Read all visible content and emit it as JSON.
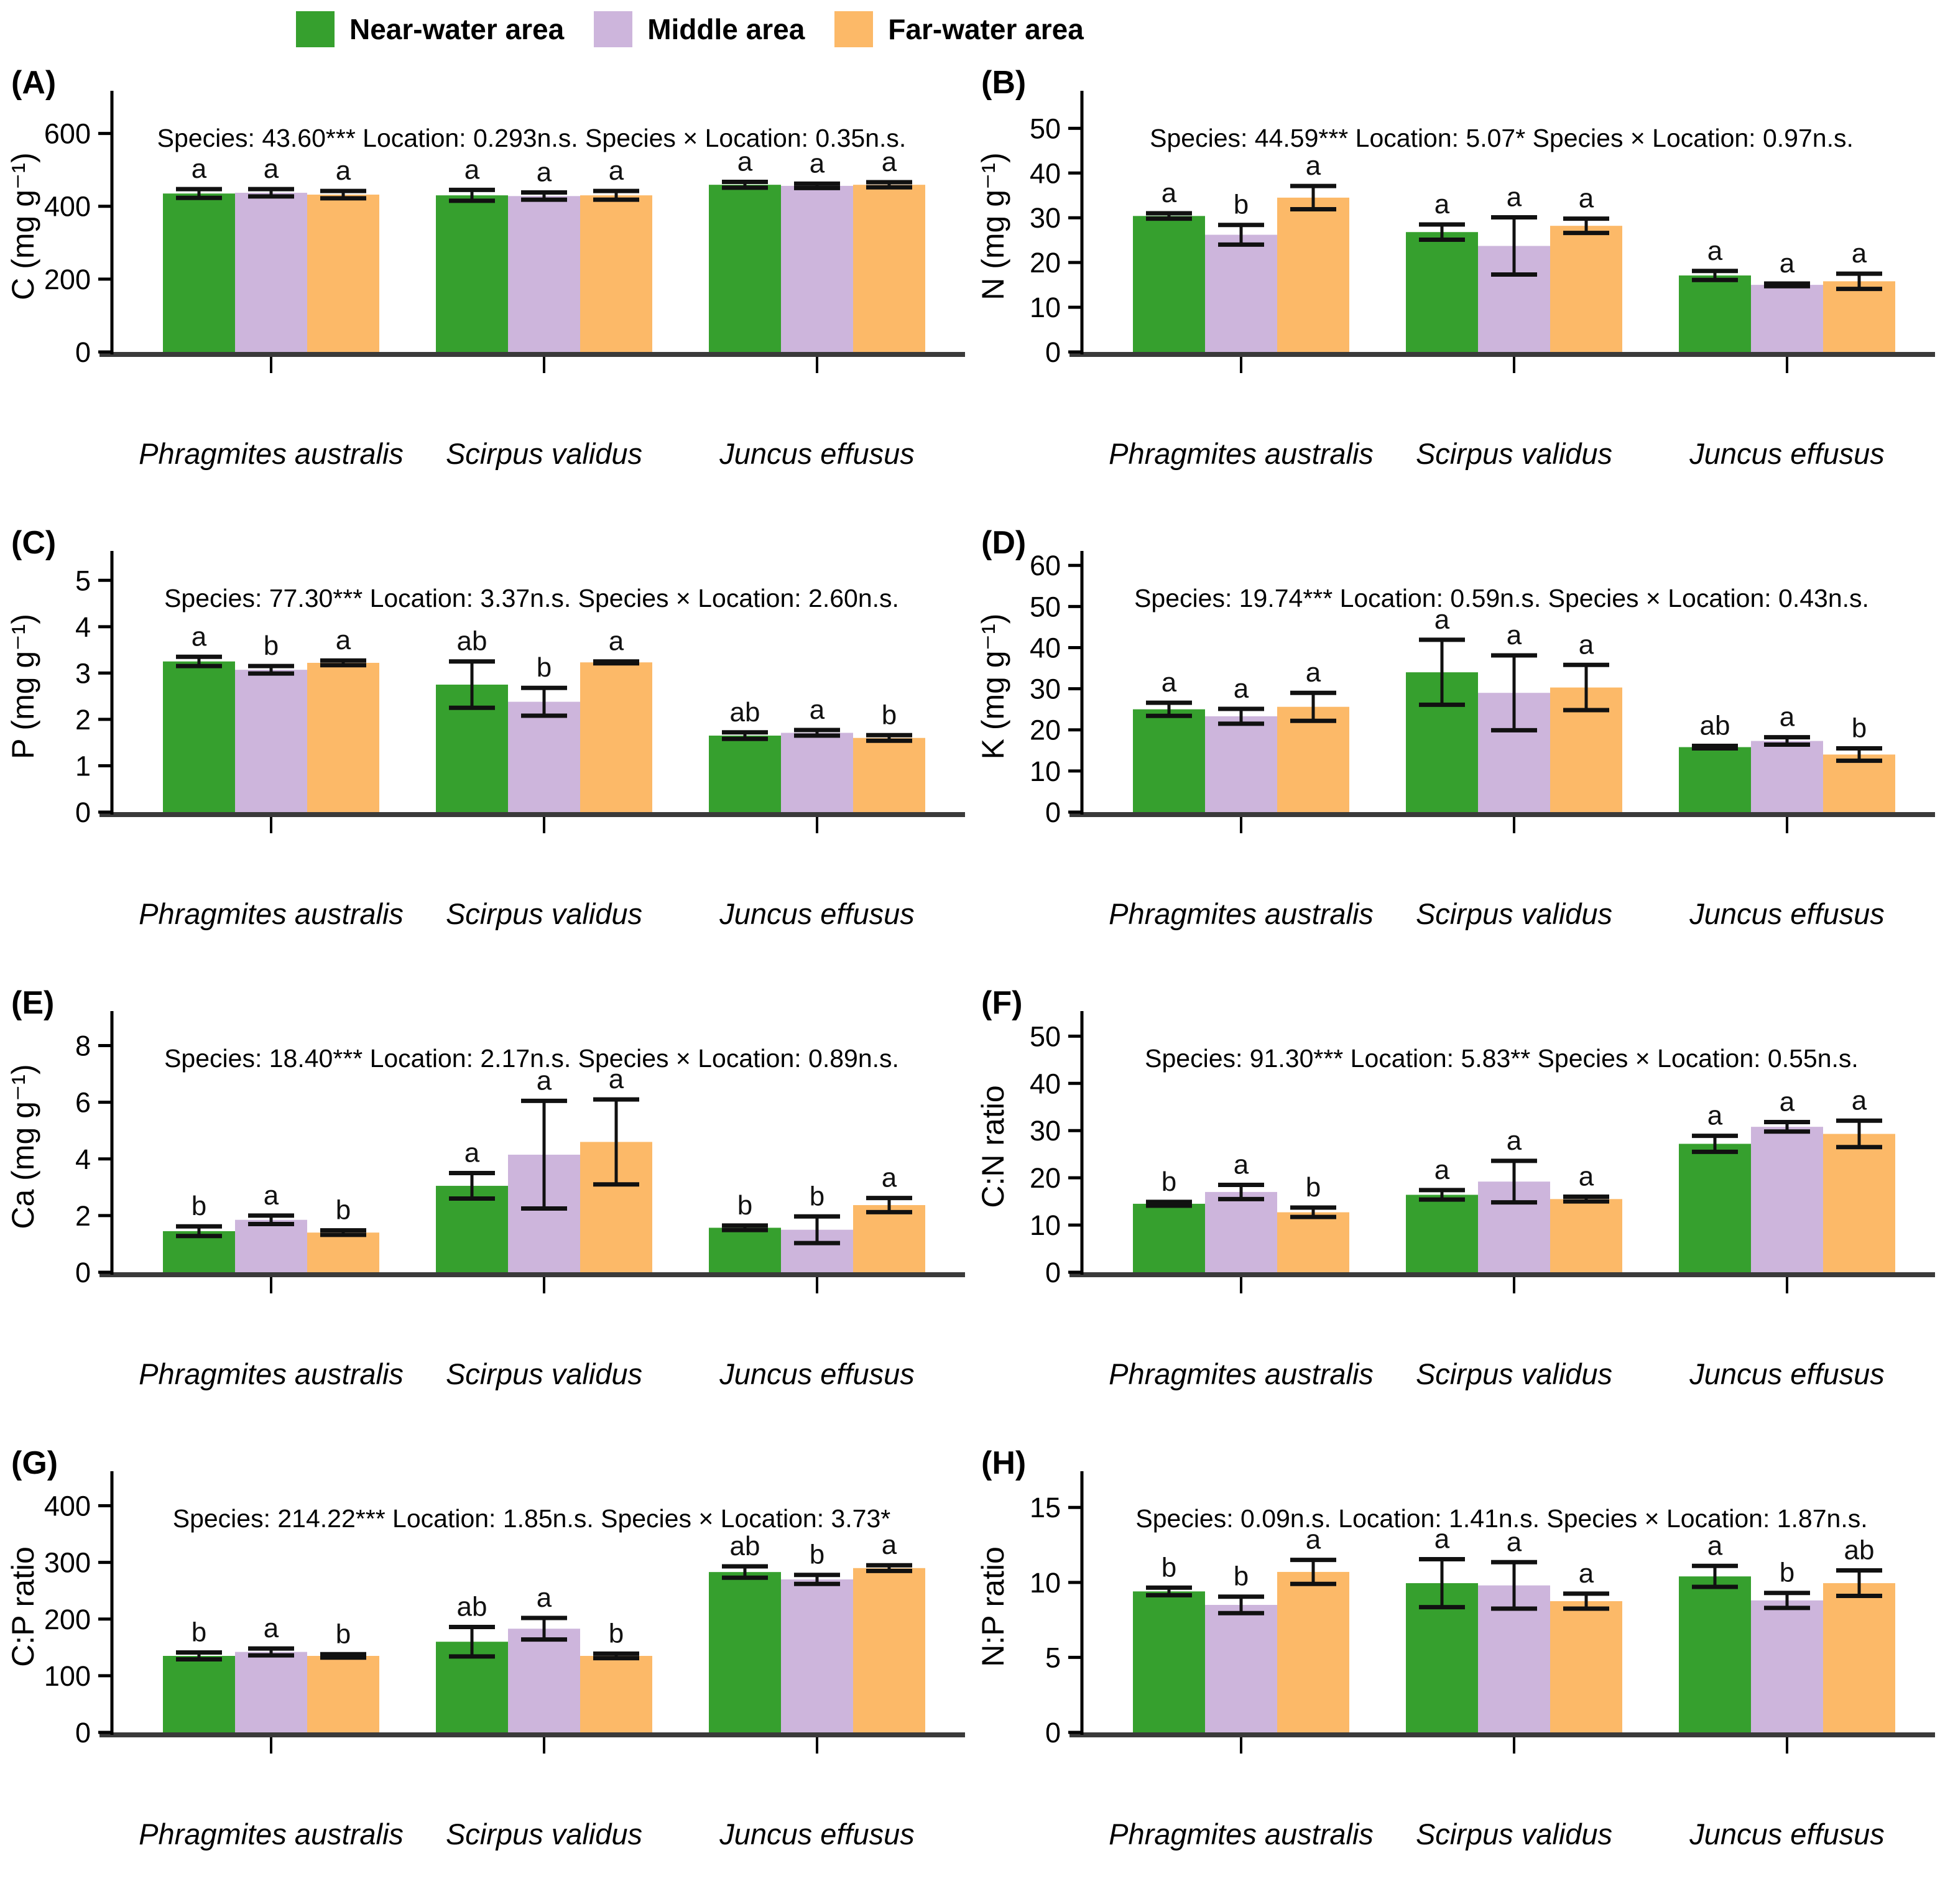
{
  "legend": {
    "position": "top",
    "items": [
      {
        "label": "Near-water area",
        "color": "#36a02e"
      },
      {
        "label": "Middle area",
        "color": "#cdb5dc"
      },
      {
        "label": "Far-water area",
        "color": "#fcb968"
      }
    ]
  },
  "error_bar_color": "#111111",
  "axis_color": "#000000",
  "baseline_color": "#3a3a3a",
  "chart_data": [
    {
      "type": "bar",
      "panel_label": "(A)",
      "stats": "Species: 43.60*** Location: 0.293n.s. Species × Location: 0.35n.s.",
      "ylabel": "C (mg g⁻¹)",
      "xlabel": "",
      "categories": [
        "Phragmites australis",
        "Scirpus validus",
        "Juncus effusus"
      ],
      "ylim": [
        0,
        700
      ],
      "yticks": [
        0,
        200,
        400,
        600
      ],
      "grid": false,
      "series": [
        {
          "name": "Near-water area",
          "color": "#36a02e",
          "values": [
            435,
            430,
            459
          ],
          "errors": [
            12,
            15,
            8
          ],
          "letters": [
            "a",
            "a",
            "a"
          ]
        },
        {
          "name": "Middle area",
          "color": "#cdb5dc",
          "values": [
            437,
            428,
            456
          ],
          "errors": [
            10,
            10,
            6
          ],
          "letters": [
            "a",
            "a",
            "a"
          ]
        },
        {
          "name": "Far-water area",
          "color": "#fcb968",
          "values": [
            432,
            430,
            459
          ],
          "errors": [
            10,
            12,
            7
          ],
          "letters": [
            "a",
            "a",
            "a"
          ]
        }
      ]
    },
    {
      "type": "bar",
      "panel_label": "(B)",
      "stats": "Species: 44.59*** Location: 5.07* Species × Location: 0.97n.s.",
      "ylabel": "N (mg g⁻¹)",
      "xlabel": "",
      "categories": [
        "Phragmites australis",
        "Scirpus validus",
        "Juncus effusus"
      ],
      "ylim": [
        0,
        57
      ],
      "yticks": [
        0,
        10,
        20,
        30,
        40,
        50
      ],
      "grid": false,
      "series": [
        {
          "name": "Near-water area",
          "color": "#36a02e",
          "values": [
            30.4,
            26.8,
            17.1
          ],
          "errors": [
            0.6,
            1.7,
            1.0
          ],
          "letters": [
            "a",
            "a",
            "a"
          ]
        },
        {
          "name": "Middle area",
          "color": "#cdb5dc",
          "values": [
            26.2,
            23.7,
            15.0
          ],
          "errors": [
            2.2,
            6.4,
            0.3
          ],
          "letters": [
            "b",
            "a",
            "a"
          ]
        },
        {
          "name": "Far-water area",
          "color": "#fcb968",
          "values": [
            34.5,
            28.2,
            15.8
          ],
          "errors": [
            2.6,
            1.6,
            1.7
          ],
          "letters": [
            "a",
            "a",
            "a"
          ]
        }
      ]
    },
    {
      "type": "bar",
      "panel_label": "(C)",
      "stats": "Species: 77.30*** Location: 3.37n.s. Species × Location: 2.60n.s.",
      "ylabel": "P (mg g⁻¹)",
      "xlabel": "",
      "categories": [
        "Phragmites australis",
        "Scirpus validus",
        "Juncus effusus"
      ],
      "ylim": [
        0,
        5.5
      ],
      "yticks": [
        0,
        1,
        2,
        3,
        4,
        5
      ],
      "grid": false,
      "series": [
        {
          "name": "Near-water area",
          "color": "#36a02e",
          "values": [
            3.25,
            2.75,
            1.65
          ],
          "errors": [
            0.1,
            0.5,
            0.07
          ],
          "letters": [
            "a",
            "ab",
            "ab"
          ]
        },
        {
          "name": "Middle area",
          "color": "#cdb5dc",
          "values": [
            3.07,
            2.38,
            1.71
          ],
          "errors": [
            0.08,
            0.3,
            0.06
          ],
          "letters": [
            "b",
            "b",
            "a"
          ]
        },
        {
          "name": "Far-water area",
          "color": "#fcb968",
          "values": [
            3.22,
            3.23,
            1.6
          ],
          "errors": [
            0.05,
            0.02,
            0.06
          ],
          "letters": [
            "a",
            "a",
            "b"
          ]
        }
      ]
    },
    {
      "type": "bar",
      "panel_label": "(D)",
      "stats": "Species: 19.74*** Location: 0.59n.s. Species × Location: 0.43n.s.",
      "ylabel": "K (mg g⁻¹)",
      "xlabel": "",
      "categories": [
        "Phragmites australis",
        "Scirpus validus",
        "Juncus effusus"
      ],
      "ylim": [
        0,
        62
      ],
      "yticks": [
        0,
        10,
        20,
        30,
        40,
        50,
        60
      ],
      "grid": false,
      "series": [
        {
          "name": "Near-water area",
          "color": "#36a02e",
          "values": [
            25.0,
            34.0,
            15.8
          ],
          "errors": [
            1.6,
            7.9,
            0.3
          ],
          "letters": [
            "a",
            "a",
            "ab"
          ]
        },
        {
          "name": "Middle area",
          "color": "#cdb5dc",
          "values": [
            23.3,
            29.0,
            17.3
          ],
          "errors": [
            1.8,
            9.1,
            0.9
          ],
          "letters": [
            "a",
            "a",
            "a"
          ]
        },
        {
          "name": "Far-water area",
          "color": "#fcb968",
          "values": [
            25.6,
            30.3,
            14.0
          ],
          "errors": [
            3.4,
            5.5,
            1.5
          ],
          "letters": [
            "a",
            "a",
            "b"
          ]
        }
      ]
    },
    {
      "type": "bar",
      "panel_label": "(E)",
      "stats": "Species: 18.40*** Location: 2.17n.s. Species × Location: 0.89n.s.",
      "ylabel": "Ca (mg g⁻¹)",
      "xlabel": "",
      "categories": [
        "Phragmites australis",
        "Scirpus validus",
        "Juncus effusus"
      ],
      "ylim": [
        0,
        9
      ],
      "yticks": [
        0,
        2,
        4,
        6,
        8
      ],
      "grid": false,
      "series": [
        {
          "name": "Near-water area",
          "color": "#36a02e",
          "values": [
            1.45,
            3.05,
            1.57
          ],
          "errors": [
            0.17,
            0.45,
            0.08
          ],
          "letters": [
            "b",
            "a",
            "b"
          ]
        },
        {
          "name": "Middle area",
          "color": "#cdb5dc",
          "values": [
            1.85,
            4.15,
            1.5
          ],
          "errors": [
            0.15,
            1.9,
            0.47
          ],
          "letters": [
            "a",
            "a",
            "b"
          ]
        },
        {
          "name": "Far-water area",
          "color": "#fcb968",
          "values": [
            1.4,
            4.6,
            2.37
          ],
          "errors": [
            0.08,
            1.5,
            0.25
          ],
          "letters": [
            "b",
            "a",
            "a"
          ]
        }
      ]
    },
    {
      "type": "bar",
      "panel_label": "(F)",
      "stats": "Species: 91.30*** Location: 5.83** Species × Location: 0.55n.s.",
      "ylabel": "C:N ratio",
      "xlabel": "",
      "categories": [
        "Phragmites australis",
        "Scirpus validus",
        "Juncus effusus"
      ],
      "ylim": [
        0,
        54
      ],
      "yticks": [
        0,
        10,
        20,
        30,
        40,
        50
      ],
      "grid": false,
      "series": [
        {
          "name": "Near-water area",
          "color": "#36a02e",
          "values": [
            14.5,
            16.4,
            27.2
          ],
          "errors": [
            0.4,
            1.0,
            1.7
          ],
          "letters": [
            "b",
            "a",
            "a"
          ]
        },
        {
          "name": "Middle area",
          "color": "#cdb5dc",
          "values": [
            17.0,
            19.2,
            30.8
          ],
          "errors": [
            1.5,
            4.4,
            1.0
          ],
          "letters": [
            "a",
            "a",
            "a"
          ]
        },
        {
          "name": "Far-water area",
          "color": "#fcb968",
          "values": [
            12.7,
            15.5,
            29.3
          ],
          "errors": [
            1.0,
            0.5,
            2.8
          ],
          "letters": [
            "b",
            "a",
            "a"
          ]
        }
      ]
    },
    {
      "type": "bar",
      "panel_label": "(G)",
      "stats": "Species: 214.22*** Location: 1.85n.s. Species × Location: 3.73*",
      "ylabel": "C:P ratio",
      "xlabel": "",
      "categories": [
        "Phragmites australis",
        "Scirpus validus",
        "Juncus effusus"
      ],
      "ylim": [
        0,
        450
      ],
      "yticks": [
        0,
        100,
        200,
        300,
        400
      ],
      "grid": false,
      "series": [
        {
          "name": "Near-water area",
          "color": "#36a02e",
          "values": [
            135,
            160,
            283
          ],
          "errors": [
            6,
            26,
            10
          ],
          "letters": [
            "b",
            "ab",
            "ab"
          ]
        },
        {
          "name": "Middle area",
          "color": "#cdb5dc",
          "values": [
            142,
            183,
            270
          ],
          "errors": [
            6,
            19,
            8
          ],
          "letters": [
            "a",
            "a",
            "b"
          ]
        },
        {
          "name": "Far-water area",
          "color": "#fcb968",
          "values": [
            135,
            135,
            290
          ],
          "errors": [
            3,
            4,
            5
          ],
          "letters": [
            "b",
            "b",
            "a"
          ]
        }
      ]
    },
    {
      "type": "bar",
      "panel_label": "(H)",
      "stats": "Species: 0.09n.s. Location: 1.41n.s. Species × Location: 1.87n.s.",
      "ylabel": "N:P ratio",
      "xlabel": "",
      "categories": [
        "Phragmites australis",
        "Scirpus validus",
        "Juncus effusus"
      ],
      "ylim": [
        0,
        17
      ],
      "yticks": [
        0,
        5,
        10,
        15
      ],
      "grid": false,
      "series": [
        {
          "name": "Near-water area",
          "color": "#36a02e",
          "values": [
            9.4,
            9.95,
            10.4
          ],
          "errors": [
            0.25,
            1.6,
            0.7
          ],
          "letters": [
            "b",
            "a",
            "a"
          ]
        },
        {
          "name": "Middle area",
          "color": "#cdb5dc",
          "values": [
            8.5,
            9.8,
            8.8
          ],
          "errors": [
            0.55,
            1.55,
            0.5
          ],
          "letters": [
            "b",
            "a",
            "b"
          ]
        },
        {
          "name": "Far-water area",
          "color": "#fcb968",
          "values": [
            10.7,
            8.75,
            9.95
          ],
          "errors": [
            0.8,
            0.5,
            0.85
          ],
          "letters": [
            "a",
            "a",
            "ab"
          ]
        }
      ]
    }
  ]
}
